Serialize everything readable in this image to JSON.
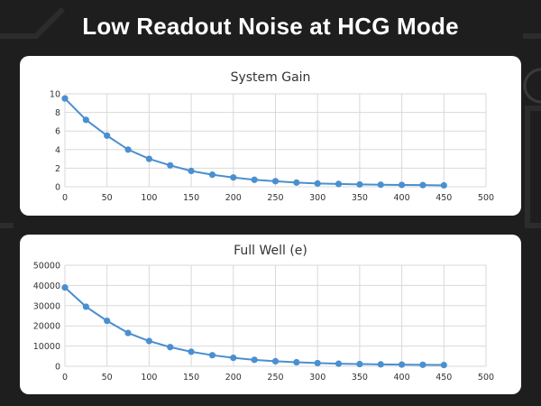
{
  "header": {
    "title": "Low Readout Noise at HCG Mode"
  },
  "colors": {
    "background": "#1e1e1e",
    "series": "#4a8fd0",
    "grid": "#d9d9d9",
    "text": "#333333"
  },
  "chart_data": [
    {
      "type": "line",
      "title": "System Gain",
      "xlabel": "",
      "ylabel": "",
      "xlim": [
        0,
        500
      ],
      "ylim": [
        0,
        10
      ],
      "x_ticks": [
        0,
        50,
        100,
        150,
        200,
        250,
        300,
        350,
        400,
        450,
        500
      ],
      "y_ticks": [
        0,
        2,
        4,
        6,
        8,
        10
      ],
      "grid": true,
      "series": [
        {
          "x": [
            0,
            25,
            50,
            75,
            100,
            125,
            150,
            175,
            200,
            225,
            250,
            275,
            300,
            325,
            350,
            375,
            400,
            425,
            450
          ],
          "values": [
            9.5,
            7.2,
            5.5,
            4.0,
            3.0,
            2.3,
            1.7,
            1.3,
            1.0,
            0.75,
            0.6,
            0.45,
            0.35,
            0.3,
            0.25,
            0.22,
            0.2,
            0.18,
            0.15
          ]
        }
      ]
    },
    {
      "type": "line",
      "title": "Full Well (e)",
      "xlabel": "",
      "ylabel": "",
      "xlim": [
        0,
        500
      ],
      "ylim": [
        0,
        50000
      ],
      "x_ticks": [
        0,
        50,
        100,
        150,
        200,
        250,
        300,
        350,
        400,
        450,
        500
      ],
      "y_ticks": [
        0,
        10000,
        20000,
        30000,
        40000,
        50000
      ],
      "grid": true,
      "series": [
        {
          "x": [
            0,
            25,
            50,
            75,
            100,
            125,
            150,
            175,
            200,
            225,
            250,
            275,
            300,
            325,
            350,
            375,
            400,
            425,
            450
          ],
          "values": [
            39000,
            29500,
            22500,
            16500,
            12500,
            9500,
            7200,
            5500,
            4200,
            3200,
            2500,
            2000,
            1600,
            1300,
            1100,
            950,
            850,
            750,
            650
          ]
        }
      ]
    }
  ]
}
